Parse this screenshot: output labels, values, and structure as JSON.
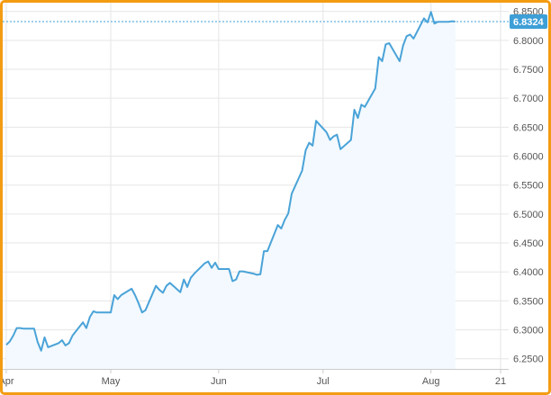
{
  "chart_data": {
    "type": "line",
    "grid": true,
    "x_tick_labels": [
      "Apr",
      "May",
      "Jun",
      "Jul",
      "Aug",
      "21"
    ],
    "y_tick_labels": [
      "6.2500",
      "6.3000",
      "6.3500",
      "6.4000",
      "6.4500",
      "6.5000",
      "6.5500",
      "6.6000",
      "6.6500",
      "6.7000",
      "6.7500",
      "6.8000",
      "6.8500"
    ],
    "xlim": [
      "2018-04-01",
      "2018-08-21"
    ],
    "ylim": [
      6.2325,
      6.865
    ],
    "last_value_label": "6.8324",
    "colors": {
      "line": "#4aa3d8",
      "area": "#f3f9fe",
      "grid": "#e6e6e6",
      "last_label_bg": "#3e9fd7",
      "frame": "#f39c12"
    },
    "series": [
      {
        "x": [
          "2018-04-01",
          "2018-04-02",
          "2018-04-03",
          "2018-04-04",
          "2018-04-05",
          "2018-04-06",
          "2018-04-09",
          "2018-04-10",
          "2018-04-11",
          "2018-04-12",
          "2018-04-13",
          "2018-04-16",
          "2018-04-17",
          "2018-04-18",
          "2018-04-19",
          "2018-04-20",
          "2018-04-23",
          "2018-04-24",
          "2018-04-25",
          "2018-04-26",
          "2018-04-27",
          "2018-04-30",
          "2018-05-01",
          "2018-05-02",
          "2018-05-03",
          "2018-05-04",
          "2018-05-07",
          "2018-05-08",
          "2018-05-09",
          "2018-05-10",
          "2018-05-11",
          "2018-05-14",
          "2018-05-15",
          "2018-05-16",
          "2018-05-17",
          "2018-05-18",
          "2018-05-21",
          "2018-05-22",
          "2018-05-23",
          "2018-05-24",
          "2018-05-25",
          "2018-05-28",
          "2018-05-29",
          "2018-05-30",
          "2018-05-31",
          "2018-06-01",
          "2018-06-04",
          "2018-06-05",
          "2018-06-06",
          "2018-06-07",
          "2018-06-08",
          "2018-06-11",
          "2018-06-12",
          "2018-06-13",
          "2018-06-14",
          "2018-06-15",
          "2018-06-18",
          "2018-06-19",
          "2018-06-20",
          "2018-06-21",
          "2018-06-22",
          "2018-06-25",
          "2018-06-26",
          "2018-06-27",
          "2018-06-28",
          "2018-06-29",
          "2018-07-02",
          "2018-07-03",
          "2018-07-04",
          "2018-07-05",
          "2018-07-06",
          "2018-07-09",
          "2018-07-10",
          "2018-07-11",
          "2018-07-12",
          "2018-07-13",
          "2018-07-16",
          "2018-07-17",
          "2018-07-18",
          "2018-07-19",
          "2018-07-20",
          "2018-07-23",
          "2018-07-24",
          "2018-07-25",
          "2018-07-26",
          "2018-07-27",
          "2018-07-30",
          "2018-07-31",
          "2018-08-01",
          "2018-08-02",
          "2018-08-03",
          "2018-08-06",
          "2018-08-07",
          "2018-08-08"
        ],
        "y": [
          6.274,
          6.28,
          6.29,
          6.303,
          6.303,
          6.302,
          6.302,
          6.279,
          6.264,
          6.287,
          6.27,
          6.277,
          6.282,
          6.273,
          6.277,
          6.29,
          6.313,
          6.303,
          6.322,
          6.332,
          6.33,
          6.33,
          6.33,
          6.36,
          6.353,
          6.36,
          6.371,
          6.36,
          6.346,
          6.33,
          6.334,
          6.376,
          6.369,
          6.364,
          6.376,
          6.381,
          6.365,
          6.387,
          6.374,
          6.39,
          6.397,
          6.415,
          6.418,
          6.407,
          6.416,
          6.405,
          6.405,
          6.384,
          6.387,
          6.401,
          6.401,
          6.397,
          6.395,
          6.396,
          6.436,
          6.436,
          6.481,
          6.475,
          6.49,
          6.501,
          6.535,
          6.575,
          6.61,
          6.623,
          6.618,
          6.661,
          6.641,
          6.628,
          6.634,
          6.637,
          6.612,
          6.628,
          6.68,
          6.666,
          6.689,
          6.685,
          6.717,
          6.771,
          6.764,
          6.793,
          6.795,
          6.764,
          6.791,
          6.807,
          6.81,
          6.803,
          6.838,
          6.831,
          6.849,
          6.829,
          6.832,
          6.832,
          6.833,
          6.8324
        ]
      }
    ]
  }
}
